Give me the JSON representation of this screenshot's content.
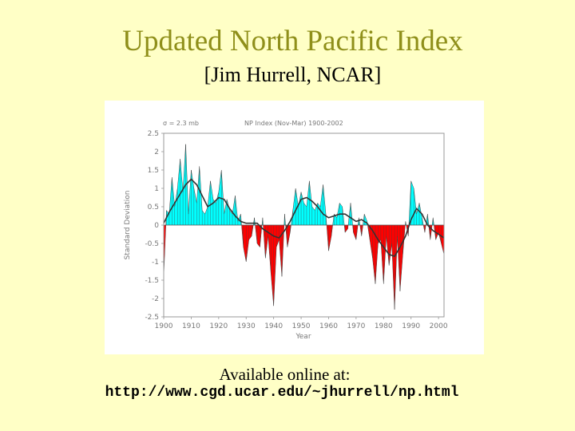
{
  "slide": {
    "title": "Updated North Pacific Index",
    "subtitle": "[Jim Hurrell, NCAR]",
    "available_text": "Available online at:",
    "url": "http://www.cgd.ucar.edu/~jhurrell/np.html"
  },
  "colors": {
    "background": "#ffffc6",
    "title": "#8f8f1a",
    "positive_fill": "#00ffff",
    "negative_fill": "#ff0000",
    "smooth_line": "#333333"
  },
  "chart_data": {
    "type": "area",
    "title": "NP Index  (Nov-Mar) 1900-2002",
    "annotation": "σ = 2.3 mb",
    "xlabel": "Year",
    "ylabel": "Standard Deviation",
    "xlim": [
      1900,
      2002
    ],
    "ylim": [
      -2.5,
      2.5
    ],
    "x_ticks": [
      1900,
      1910,
      1920,
      1930,
      1940,
      1950,
      1960,
      1970,
      1980,
      1990,
      2000
    ],
    "x_tick_labels": [
      "1900",
      "1910",
      "1920",
      "1930",
      "1940",
      "1950",
      "1960",
      "1970",
      "1980",
      "1990",
      "2000"
    ],
    "y_ticks": [
      2.5,
      2,
      1.5,
      1,
      0.5,
      0,
      -0.5,
      -1,
      -1.5,
      -2,
      -2.5
    ],
    "y_tick_labels": [
      "2.5",
      "2",
      "1.5",
      "1",
      "0.5",
      "0",
      "-0.5",
      "-1",
      "-1.5",
      "-2",
      "-2.5"
    ],
    "grid": false,
    "series": [
      {
        "values_start_year": 1900,
        "values": [
          -1.4,
          0.4,
          0.3,
          1.3,
          0.5,
          1.0,
          1.8,
          0.9,
          2.2,
          0.3,
          1.5,
          1.0,
          0.6,
          1.6,
          0.4,
          0.3,
          0.5,
          1.2,
          0.7,
          0.6,
          0.9,
          1.5,
          0.3,
          0.7,
          0.4,
          0.3,
          0.8,
          0.1,
          0.3,
          -0.6,
          -1.0,
          -0.4,
          -0.3,
          0.2,
          -0.5,
          -0.6,
          0.2,
          -0.9,
          -0.3,
          -1.3,
          -2.2,
          -0.6,
          -0.4,
          -1.4,
          0.3,
          -0.6,
          -0.2,
          0.4,
          1.0,
          0.5,
          0.9,
          0.6,
          0.5,
          1.2,
          0.5,
          0.4,
          0.6,
          0.5,
          1.1,
          0.3,
          -0.7,
          -0.3,
          0.3,
          0.2,
          0.6,
          0.5,
          -0.2,
          -0.1,
          0.6,
          -0.2,
          -0.4,
          0.2,
          -0.3,
          0.3,
          0.1,
          -0.4,
          -0.9,
          -1.6,
          -0.5,
          -0.4,
          -1.6,
          -0.3,
          -1.1,
          -0.5,
          -2.3,
          -0.3,
          -1.8,
          -0.8,
          0.1,
          -0.3,
          1.2,
          1.0,
          0.3,
          0.6,
          0.2,
          -0.2,
          0.3,
          -0.4,
          0.2,
          -0.4,
          -0.2,
          -0.5,
          -0.8
        ]
      },
      {
        "name": "smoothed",
        "years": [
          1900,
          1902,
          1904,
          1906,
          1908,
          1910,
          1912,
          1914,
          1916,
          1918,
          1920,
          1922,
          1924,
          1926,
          1928,
          1930,
          1932,
          1934,
          1936,
          1938,
          1940,
          1942,
          1944,
          1946,
          1948,
          1950,
          1952,
          1954,
          1956,
          1958,
          1960,
          1962,
          1964,
          1966,
          1968,
          1970,
          1972,
          1974,
          1976,
          1978,
          1980,
          1982,
          1984,
          1986,
          1988,
          1990,
          1992,
          1994,
          1996,
          1998,
          2000,
          2002
        ],
        "values": [
          0.05,
          0.35,
          0.6,
          0.85,
          1.1,
          1.25,
          1.1,
          0.8,
          0.5,
          0.6,
          0.75,
          0.7,
          0.45,
          0.25,
          0.1,
          0.05,
          0.05,
          0.05,
          -0.1,
          -0.2,
          -0.3,
          -0.35,
          -0.15,
          0.1,
          0.4,
          0.7,
          0.75,
          0.65,
          0.5,
          0.3,
          0.2,
          0.25,
          0.3,
          0.3,
          0.2,
          0.1,
          0.15,
          0.05,
          -0.15,
          -0.4,
          -0.6,
          -0.8,
          -0.85,
          -0.6,
          -0.3,
          0.15,
          0.45,
          0.3,
          0.0,
          -0.15,
          -0.25,
          -0.35
        ]
      }
    ]
  }
}
